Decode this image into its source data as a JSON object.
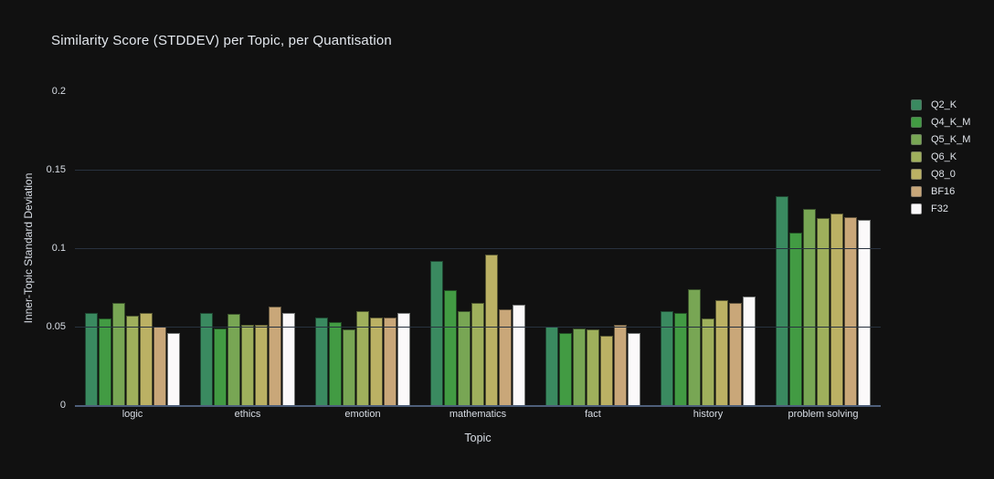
{
  "title": "Similarity Score (STDDEV) per Topic, per Quantisation",
  "colors": {
    "background": "#111111",
    "grid": "#28323f",
    "axis_line": "#4e5f7a",
    "title_text": "#e4e8ee",
    "tick_text": "#d9dee6"
  },
  "chart_data": {
    "type": "bar",
    "title": "Similarity Score (STDDEV) per Topic, per Quantisation",
    "xlabel": "Topic",
    "ylabel": "Inner-Topic Standard Deviation",
    "ylim": [
      0,
      0.2
    ],
    "grid": true,
    "legend_position": "right",
    "categories": [
      "logic",
      "ethics",
      "emotion",
      "mathematics",
      "fact",
      "history",
      "problem solving"
    ],
    "yticks": [
      {
        "value": 0,
        "label": "0"
      },
      {
        "value": 0.05,
        "label": "0.05"
      },
      {
        "value": 0.1,
        "label": "0.1"
      },
      {
        "value": 0.15,
        "label": "0.15"
      },
      {
        "value": 0.2,
        "label": "0.2"
      }
    ],
    "series": [
      {
        "name": "Q2_K",
        "color": "#3a8a60",
        "values": [
          0.059,
          0.059,
          0.056,
          0.092,
          0.05,
          0.06,
          0.133
        ]
      },
      {
        "name": "Q4_K_M",
        "color": "#429b43",
        "values": [
          0.055,
          0.049,
          0.053,
          0.073,
          0.046,
          0.059,
          0.11
        ]
      },
      {
        "name": "Q5_K_M",
        "color": "#78a654",
        "values": [
          0.065,
          0.058,
          0.048,
          0.06,
          0.049,
          0.074,
          0.125
        ]
      },
      {
        "name": "Q6_K",
        "color": "#9fb05c",
        "values": [
          0.057,
          0.051,
          0.06,
          0.065,
          0.048,
          0.055,
          0.119
        ]
      },
      {
        "name": "Q8_0",
        "color": "#bbb164",
        "values": [
          0.059,
          0.051,
          0.056,
          0.096,
          0.044,
          0.067,
          0.122
        ]
      },
      {
        "name": "BF16",
        "color": "#c9a779",
        "values": [
          0.05,
          0.063,
          0.056,
          0.061,
          0.051,
          0.065,
          0.12
        ]
      },
      {
        "name": "F32",
        "color": "#fbf9fa",
        "values": [
          0.046,
          0.059,
          0.059,
          0.064,
          0.046,
          0.069,
          0.118
        ]
      }
    ]
  }
}
